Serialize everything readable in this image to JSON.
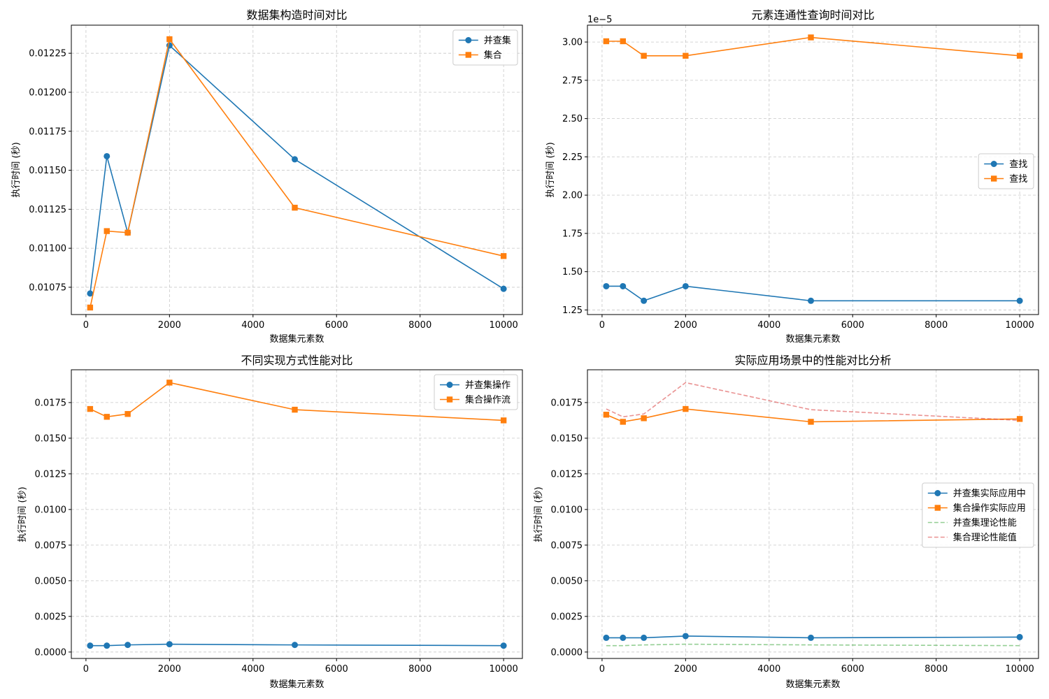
{
  "chart_data": [
    {
      "type": "line",
      "title": "数据集构造时间对比",
      "xlabel": "数据集元素数",
      "ylabel": "执行时间 (秒)",
      "x": [
        100,
        500,
        1000,
        2000,
        5000,
        10000
      ],
      "xlim": [
        -350,
        10450
      ],
      "xticks": [
        0,
        2000,
        4000,
        6000,
        8000,
        10000
      ],
      "ylim": [
        0.010575,
        0.01243
      ],
      "yticks": [
        0.01075,
        0.011,
        0.01125,
        0.0115,
        0.01175,
        0.012,
        0.01225
      ],
      "ytick_labels": [
        "0.01075",
        "0.01100",
        "0.01125",
        "0.01150",
        "0.01175",
        "0.01200",
        "0.01225"
      ],
      "offset_text": "",
      "grid": true,
      "legend_position": "top-right",
      "series": [
        {
          "name": "并查集",
          "color": "#1f77b4",
          "marker": "circle",
          "dashed": false,
          "values": [
            0.01071,
            0.01159,
            0.0111,
            0.0123,
            0.01157,
            0.01074
          ]
        },
        {
          "name": "集合",
          "color": "#ff7f0e",
          "marker": "square",
          "dashed": false,
          "values": [
            0.01062,
            0.01111,
            0.0111,
            0.01234,
            0.01126,
            0.01095
          ]
        }
      ]
    },
    {
      "type": "line",
      "title": "元素连通性查询时间对比",
      "xlabel": "数据集元素数",
      "ylabel": "执行时间 (秒)",
      "x": [
        100,
        500,
        1000,
        2000,
        5000,
        10000
      ],
      "xlim": [
        -350,
        10450
      ],
      "xticks": [
        0,
        2000,
        4000,
        6000,
        8000,
        10000
      ],
      "ylim": [
        1.22,
        3.11
      ],
      "yticks": [
        1.25,
        1.5,
        1.75,
        2.0,
        2.25,
        2.5,
        2.75,
        3.0
      ],
      "ytick_labels": [
        "1.25",
        "1.50",
        "1.75",
        "2.00",
        "2.25",
        "2.50",
        "2.75",
        "3.00"
      ],
      "offset_text": "1e−5",
      "grid": true,
      "legend_position": "center-right",
      "series": [
        {
          "name": "查找",
          "color": "#1f77b4",
          "marker": "circle",
          "dashed": false,
          "values": [
            1.405,
            1.405,
            1.31,
            1.405,
            1.31,
            1.31
          ]
        },
        {
          "name": "查找",
          "color": "#ff7f0e",
          "marker": "square",
          "dashed": false,
          "values": [
            3.005,
            3.005,
            2.91,
            2.91,
            3.03,
            2.91
          ]
        }
      ]
    },
    {
      "type": "line",
      "title": "不同实现方式性能对比",
      "xlabel": "数据集元素数",
      "ylabel": "执行时间 (秒)",
      "x": [
        100,
        500,
        1000,
        2000,
        5000,
        10000
      ],
      "xlim": [
        -350,
        10450
      ],
      "xticks": [
        0,
        2000,
        4000,
        6000,
        8000,
        10000
      ],
      "ylim": [
        -0.00045,
        0.0198
      ],
      "yticks": [
        0.0,
        0.0025,
        0.005,
        0.0075,
        0.01,
        0.0125,
        0.015,
        0.0175
      ],
      "ytick_labels": [
        "0.0000",
        "0.0025",
        "0.0050",
        "0.0075",
        "0.0100",
        "0.0125",
        "0.0150",
        "0.0175"
      ],
      "offset_text": "",
      "grid": true,
      "legend_position": "top-right",
      "series": [
        {
          "name": "并查集操作",
          "color": "#1f77b4",
          "marker": "circle",
          "dashed": false,
          "values": [
            0.00045,
            0.00045,
            0.0005,
            0.00055,
            0.0005,
            0.00045
          ]
        },
        {
          "name": "集合操作流",
          "color": "#ff7f0e",
          "marker": "square",
          "dashed": false,
          "values": [
            0.01705,
            0.0165,
            0.0167,
            0.0189,
            0.017,
            0.01625
          ]
        }
      ]
    },
    {
      "type": "line",
      "title": "实际应用场景中的性能对比分析",
      "xlabel": "数据集元素数",
      "ylabel": "执行时间 (秒)",
      "x": [
        100,
        500,
        1000,
        2000,
        5000,
        10000
      ],
      "xlim": [
        -350,
        10450
      ],
      "xticks": [
        0,
        2000,
        4000,
        6000,
        8000,
        10000
      ],
      "ylim": [
        -0.00045,
        0.0198
      ],
      "yticks": [
        0.0,
        0.0025,
        0.005,
        0.0075,
        0.01,
        0.0125,
        0.015,
        0.0175
      ],
      "ytick_labels": [
        "0.0000",
        "0.0025",
        "0.0050",
        "0.0075",
        "0.0100",
        "0.0125",
        "0.0150",
        "0.0175"
      ],
      "offset_text": "",
      "grid": true,
      "legend_position": "center-right",
      "series": [
        {
          "name": "并查集实际应用中",
          "color": "#1f77b4",
          "marker": "circle",
          "dashed": false,
          "values": [
            0.001,
            0.001,
            0.001,
            0.00112,
            0.001,
            0.00105
          ]
        },
        {
          "name": "集合操作实际应用",
          "color": "#ff7f0e",
          "marker": "square",
          "dashed": false,
          "values": [
            0.01665,
            0.01615,
            0.0164,
            0.01705,
            0.01615,
            0.01635
          ]
        },
        {
          "name": "并查集理论性能",
          "color": "#2ca02c",
          "marker": "none",
          "dashed": true,
          "opacity": 0.5,
          "values": [
            0.00045,
            0.00045,
            0.0005,
            0.00055,
            0.0005,
            0.00045
          ]
        },
        {
          "name": "集合理论性能值",
          "color": "#d62728",
          "marker": "none",
          "dashed": true,
          "opacity": 0.5,
          "values": [
            0.01705,
            0.0165,
            0.0167,
            0.0189,
            0.017,
            0.01625
          ]
        }
      ]
    }
  ]
}
